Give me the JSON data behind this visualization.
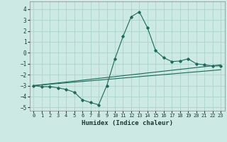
{
  "xlabel": "Humidex (Indice chaleur)",
  "xlim": [
    -0.5,
    23.5
  ],
  "ylim": [
    -5.3,
    4.7
  ],
  "yticks": [
    -5,
    -4,
    -3,
    -2,
    -1,
    0,
    1,
    2,
    3,
    4
  ],
  "xticks": [
    0,
    1,
    2,
    3,
    4,
    5,
    6,
    7,
    8,
    9,
    10,
    11,
    12,
    13,
    14,
    15,
    16,
    17,
    18,
    19,
    20,
    21,
    22,
    23
  ],
  "bg_color": "#cce9e4",
  "grid_color": "#aad4cc",
  "line_color": "#1a6b5a",
  "line1_x": [
    0,
    1,
    2,
    3,
    4,
    5,
    6,
    7,
    8,
    9,
    10,
    11,
    12,
    13,
    14,
    15,
    16,
    17,
    18,
    19,
    20,
    21,
    22,
    23
  ],
  "line1_y": [
    -3.0,
    -3.1,
    -3.1,
    -3.2,
    -3.35,
    -3.6,
    -4.3,
    -4.55,
    -4.75,
    -3.0,
    -0.55,
    1.5,
    3.3,
    3.75,
    2.3,
    0.2,
    -0.45,
    -0.8,
    -0.75,
    -0.55,
    -1.0,
    -1.1,
    -1.2,
    -1.2
  ],
  "line2_x": [
    0,
    23
  ],
  "line2_y": [
    -3.0,
    -1.1
  ],
  "line3_x": [
    0,
    23
  ],
  "line3_y": [
    -3.0,
    -1.55
  ]
}
